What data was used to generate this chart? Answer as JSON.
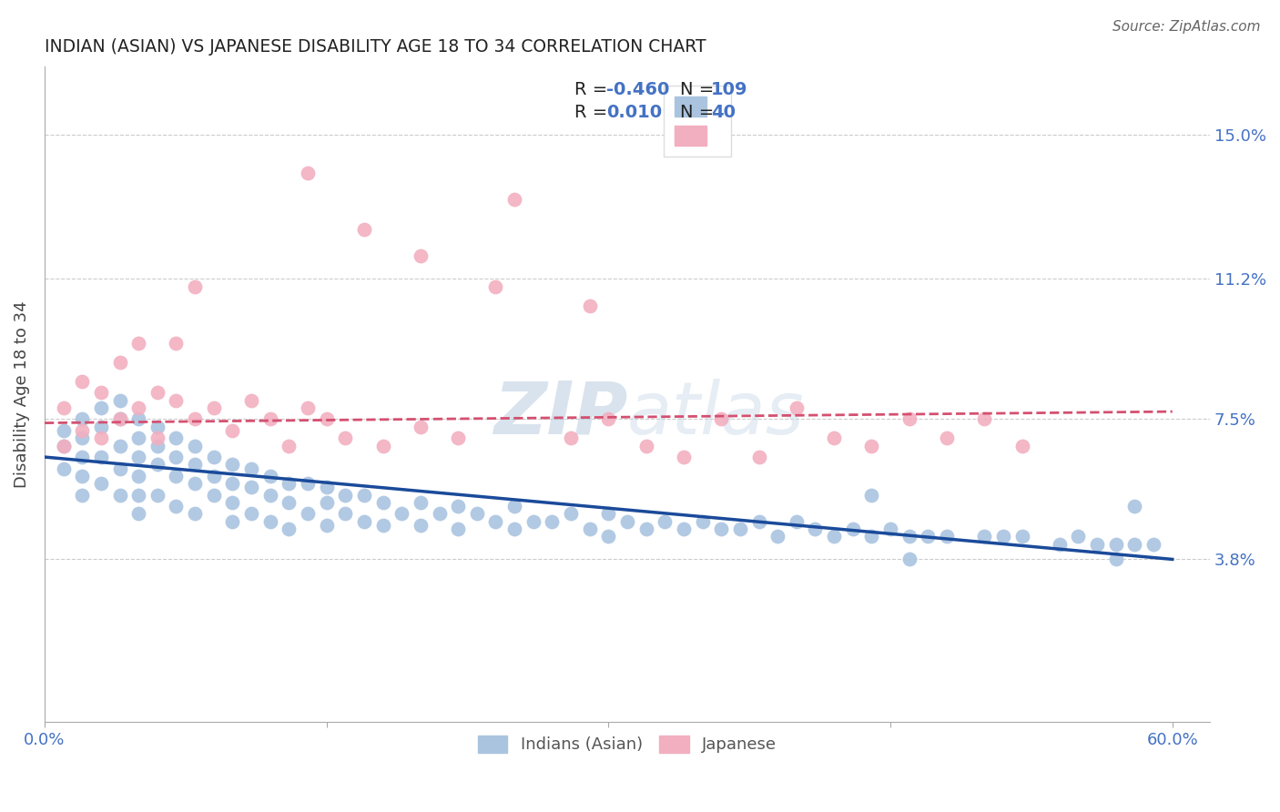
{
  "title": "INDIAN (ASIAN) VS JAPANESE DISABILITY AGE 18 TO 34 CORRELATION CHART",
  "source_text": "Source: ZipAtlas.com",
  "ylabel": "Disability Age 18 to 34",
  "xlim": [
    0.0,
    0.62
  ],
  "ylim": [
    -0.005,
    0.168
  ],
  "yticks": [
    0.038,
    0.075,
    0.112,
    0.15
  ],
  "ytick_labels": [
    "3.8%",
    "7.5%",
    "11.2%",
    "15.0%"
  ],
  "xticks": [
    0.0,
    0.15,
    0.3,
    0.45,
    0.6
  ],
  "xtick_labels": [
    "0.0%",
    "",
    "",
    "",
    "60.0%"
  ],
  "legend1_r1": "R = -0.460",
  "legend1_n1": "N = 109",
  "legend1_r2": "R =  0.010",
  "legend1_n2": "N =  40",
  "indian_color": "#aac4e0",
  "japanese_color": "#f2afc0",
  "indian_line_color": "#1a4a9a",
  "japanese_line_color": "#d45070",
  "watermark_zip": "ZIP",
  "watermark_atlas": "atlas",
  "title_color": "#222222",
  "axis_label_color": "#444444",
  "tick_label_color": "#4472c4",
  "grid_color": "#cccccc",
  "indian_scatter_x": [
    0.01,
    0.01,
    0.01,
    0.02,
    0.02,
    0.02,
    0.02,
    0.02,
    0.03,
    0.03,
    0.03,
    0.03,
    0.04,
    0.04,
    0.04,
    0.04,
    0.04,
    0.05,
    0.05,
    0.05,
    0.05,
    0.05,
    0.05,
    0.06,
    0.06,
    0.06,
    0.06,
    0.07,
    0.07,
    0.07,
    0.07,
    0.08,
    0.08,
    0.08,
    0.08,
    0.09,
    0.09,
    0.09,
    0.1,
    0.1,
    0.1,
    0.1,
    0.11,
    0.11,
    0.11,
    0.12,
    0.12,
    0.12,
    0.13,
    0.13,
    0.13,
    0.14,
    0.14,
    0.15,
    0.15,
    0.15,
    0.16,
    0.16,
    0.17,
    0.17,
    0.18,
    0.18,
    0.19,
    0.2,
    0.2,
    0.21,
    0.22,
    0.22,
    0.23,
    0.24,
    0.25,
    0.25,
    0.26,
    0.27,
    0.28,
    0.29,
    0.3,
    0.3,
    0.31,
    0.32,
    0.33,
    0.34,
    0.35,
    0.36,
    0.37,
    0.38,
    0.39,
    0.4,
    0.41,
    0.42,
    0.43,
    0.44,
    0.45,
    0.46,
    0.47,
    0.48,
    0.5,
    0.51,
    0.52,
    0.54,
    0.55,
    0.56,
    0.57,
    0.58,
    0.59,
    0.44,
    0.46,
    0.57,
    0.58
  ],
  "indian_scatter_y": [
    0.072,
    0.068,
    0.062,
    0.075,
    0.07,
    0.065,
    0.06,
    0.055,
    0.078,
    0.073,
    0.065,
    0.058,
    0.08,
    0.075,
    0.068,
    0.062,
    0.055,
    0.075,
    0.07,
    0.065,
    0.06,
    0.055,
    0.05,
    0.073,
    0.068,
    0.063,
    0.055,
    0.07,
    0.065,
    0.06,
    0.052,
    0.068,
    0.063,
    0.058,
    0.05,
    0.065,
    0.06,
    0.055,
    0.063,
    0.058,
    0.053,
    0.048,
    0.062,
    0.057,
    0.05,
    0.06,
    0.055,
    0.048,
    0.058,
    0.053,
    0.046,
    0.058,
    0.05,
    0.057,
    0.053,
    0.047,
    0.055,
    0.05,
    0.055,
    0.048,
    0.053,
    0.047,
    0.05,
    0.053,
    0.047,
    0.05,
    0.052,
    0.046,
    0.05,
    0.048,
    0.052,
    0.046,
    0.048,
    0.048,
    0.05,
    0.046,
    0.05,
    0.044,
    0.048,
    0.046,
    0.048,
    0.046,
    0.048,
    0.046,
    0.046,
    0.048,
    0.044,
    0.048,
    0.046,
    0.044,
    0.046,
    0.044,
    0.046,
    0.044,
    0.044,
    0.044,
    0.044,
    0.044,
    0.044,
    0.042,
    0.044,
    0.042,
    0.042,
    0.042,
    0.042,
    0.055,
    0.038,
    0.038,
    0.052
  ],
  "japanese_scatter_x": [
    0.01,
    0.01,
    0.02,
    0.02,
    0.03,
    0.03,
    0.04,
    0.04,
    0.05,
    0.05,
    0.06,
    0.06,
    0.07,
    0.07,
    0.08,
    0.09,
    0.1,
    0.11,
    0.12,
    0.13,
    0.14,
    0.15,
    0.16,
    0.18,
    0.2,
    0.22,
    0.25,
    0.28,
    0.3,
    0.32,
    0.34,
    0.36,
    0.38,
    0.4,
    0.42,
    0.44,
    0.46,
    0.48,
    0.5,
    0.52
  ],
  "japanese_scatter_y": [
    0.078,
    0.068,
    0.085,
    0.072,
    0.082,
    0.07,
    0.09,
    0.075,
    0.095,
    0.078,
    0.082,
    0.07,
    0.095,
    0.08,
    0.075,
    0.078,
    0.072,
    0.08,
    0.075,
    0.068,
    0.078,
    0.075,
    0.07,
    0.068,
    0.073,
    0.07,
    0.133,
    0.07,
    0.075,
    0.068,
    0.065,
    0.075,
    0.065,
    0.078,
    0.07,
    0.068,
    0.075,
    0.07,
    0.075,
    0.068
  ],
  "japanese_outliers_x": [
    0.08,
    0.14,
    0.17,
    0.2,
    0.24,
    0.29
  ],
  "japanese_outliers_y": [
    0.11,
    0.14,
    0.125,
    0.118,
    0.11,
    0.105
  ]
}
